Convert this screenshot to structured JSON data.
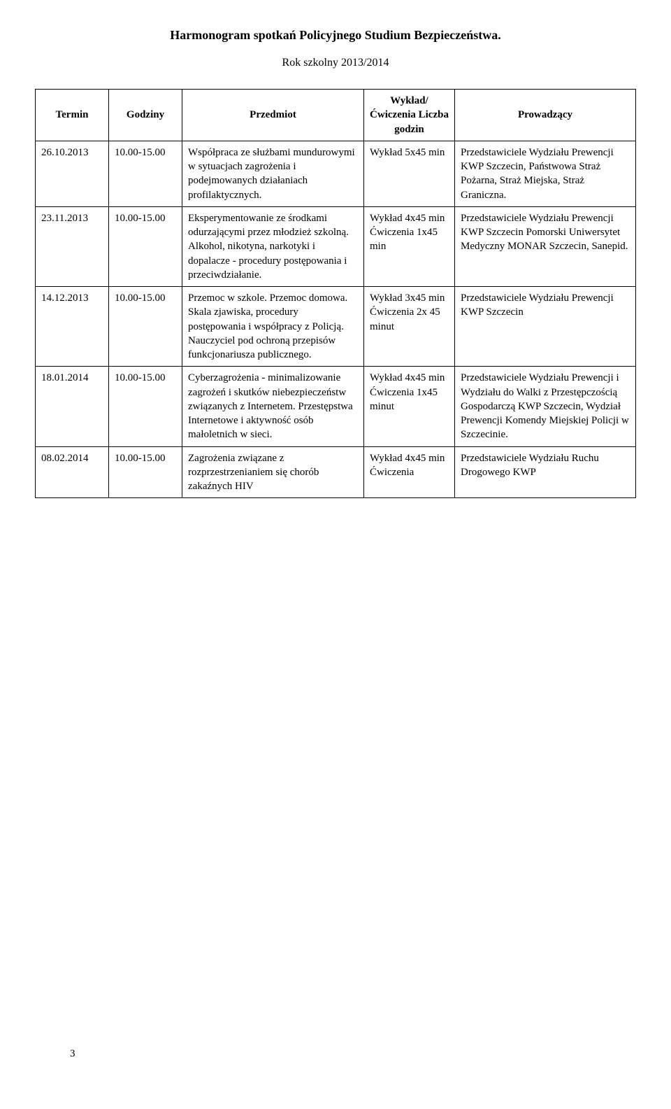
{
  "title": "Harmonogram spotkań Policyjnego Studium Bezpieczeństwa.",
  "subtitle": "Rok szkolny 2013/2014",
  "pageNumber": "3",
  "headers": {
    "termin": "Termin",
    "godziny": "Godziny",
    "przedmiot": "Przedmiot",
    "wyklad": "Wykład/ Ćwiczenia Liczba godzin",
    "prowadzacy": "Prowadzący"
  },
  "rows": [
    {
      "termin": "26.10.2013",
      "godziny": "10.00-15.00",
      "przedmiot": "Współpraca ze służbami mundurowymi w sytuacjach zagrożenia i podejmowanych działaniach profilaktycznych.",
      "wyklad": "Wykład 5x45 min",
      "prowadzacy": "Przedstawiciele Wydziału Prewencji KWP Szczecin, Państwowa Straż Pożarna, Straż Miejska, Straż Graniczna."
    },
    {
      "termin": "23.11.2013",
      "godziny": "10.00-15.00",
      "przedmiot": "Eksperymentowanie ze środkami odurzającymi przez młodzież szkolną. Alkohol, nikotyna, narkotyki i dopalacze - procedury postępowania i przeciwdziałanie.",
      "wyklad": "Wykład 4x45 min Ćwiczenia 1x45 min",
      "prowadzacy": "Przedstawiciele Wydziału Prewencji KWP Szczecin Pomorski Uniwersytet Medyczny MONAR Szczecin, Sanepid."
    },
    {
      "termin": "14.12.2013",
      "godziny": "10.00-15.00",
      "przedmiot": "Przemoc w szkole. Przemoc domowa. Skala zjawiska, procedury postępowania i współpracy z Policją. Nauczyciel pod ochroną przepisów funkcjonariusza publicznego.",
      "wyklad": "Wykład 3x45 min Ćwiczenia 2x 45 minut",
      "prowadzacy": "Przedstawiciele Wydziału Prewencji KWP Szczecin"
    },
    {
      "termin": "18.01.2014",
      "godziny": "10.00-15.00",
      "przedmiot": "Cyberzagrożenia - minimalizowanie zagrożeń i skutków niebezpieczeństw związanych z Internetem. Przestępstwa Internetowe i aktywność osób małoletnich w sieci.",
      "wyklad": "Wykład 4x45 min Ćwiczenia 1x45 minut",
      "prowadzacy": "Przedstawiciele Wydziału Prewencji i Wydziału do Walki z Przestępczością Gospodarczą KWP Szczecin, Wydział Prewencji Komendy Miejskiej Policji w Szczecinie."
    },
    {
      "termin": "08.02.2014",
      "godziny": "10.00-15.00",
      "przedmiot": "Zagrożenia związane z rozprzestrzenianiem się chorób zakaźnych HIV",
      "wyklad": "Wykład 4x45 min Ćwiczenia",
      "prowadzacy": "Przedstawiciele Wydziału Ruchu Drogowego KWP"
    }
  ]
}
